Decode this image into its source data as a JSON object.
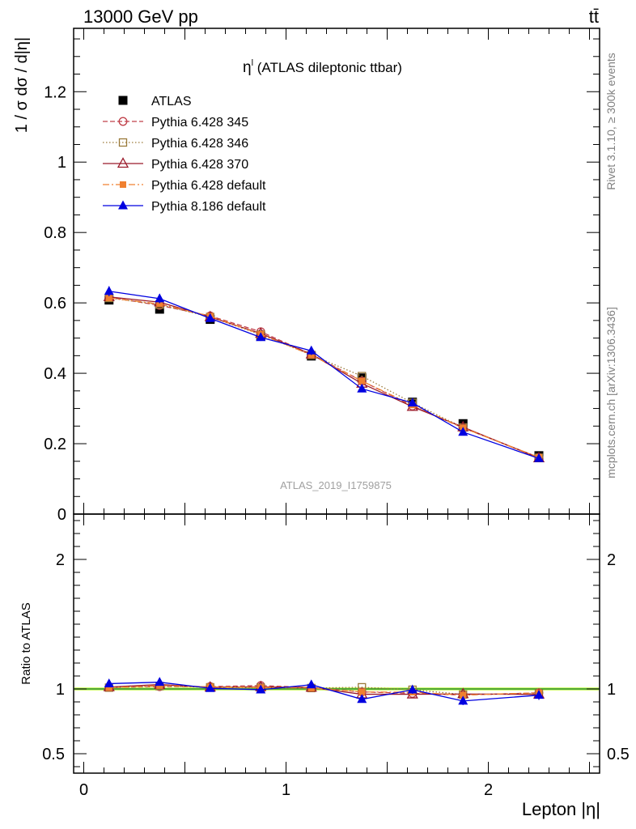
{
  "header": {
    "left_label": "13000 GeV pp",
    "right_label": "tt̄"
  },
  "side_labels": {
    "rivet": "Rivet 3.1.10, ≥ 300k events",
    "mcplots": "mcplots.cern.ch [arXiv:1306.3436]"
  },
  "chart_data": {
    "type": "line",
    "title_symbol": "η",
    "title_superscript": "l",
    "title_rest": " (ATLAS dileptonic ttbar)",
    "ylabel": "1 / σ  dσ / d|η|",
    "xlabel": "Lepton |η|",
    "analysis_label": "ATLAS_2019_I1759875",
    "xlim": [
      -0.05,
      2.55
    ],
    "ylim": [
      0,
      1.38
    ],
    "x_ticks": [
      "0",
      "1",
      "2"
    ],
    "y_ticks": [
      "0",
      "0.2",
      "0.4",
      "0.6",
      "0.8",
      "1",
      "1.2"
    ],
    "x": [
      0.125,
      0.375,
      0.625,
      0.875,
      1.125,
      1.375,
      1.625,
      1.875,
      2.25
    ],
    "series": [
      {
        "name": "ATLAS",
        "color": "#000000",
        "marker": "square-filled",
        "line": "none",
        "values": [
          0.608,
          0.582,
          0.553,
          0.505,
          0.449,
          0.387,
          0.318,
          0.257,
          0.166
        ]
      },
      {
        "name": "Pythia 6.428 345",
        "color": "#c0404a",
        "marker": "circle-open",
        "line": "dashed",
        "values": [
          0.616,
          0.593,
          0.563,
          0.518,
          0.454,
          0.378,
          0.307,
          0.245,
          0.161
        ]
      },
      {
        "name": "Pythia 6.428 346",
        "color": "#9a7a3a",
        "marker": "square-open",
        "line": "dotted",
        "values": [
          0.614,
          0.595,
          0.56,
          0.51,
          0.452,
          0.392,
          0.316,
          0.246,
          0.16
        ]
      },
      {
        "name": "Pythia 6.428 370",
        "color": "#9a1a2a",
        "marker": "triangle-open",
        "line": "solid",
        "values": [
          0.617,
          0.602,
          0.56,
          0.513,
          0.454,
          0.371,
          0.305,
          0.247,
          0.159
        ]
      },
      {
        "name": "Pythia 6.428 default",
        "color": "#f08030",
        "marker": "square-filled-small",
        "line": "dashdot",
        "values": [
          0.614,
          0.597,
          0.562,
          0.511,
          0.452,
          0.378,
          0.31,
          0.245,
          0.161
        ]
      },
      {
        "name": "Pythia 8.186 default",
        "color": "#0000e0",
        "marker": "triangle-filled",
        "line": "solid",
        "values": [
          0.633,
          0.612,
          0.556,
          0.502,
          0.464,
          0.356,
          0.316,
          0.233,
          0.158
        ]
      }
    ],
    "errors": {
      "ATLAS": [
        0.008,
        0.008,
        0.008,
        0.008,
        0.008,
        0.008,
        0.008,
        0.008,
        0.008
      ],
      "Pythia 8.186 default": [
        0.014,
        0.013,
        0.01,
        0.01,
        0.012,
        0.007,
        0.01,
        0.008,
        0.006
      ]
    },
    "ratio": {
      "ylabel": "Ratio to ATLAS",
      "ylim": [
        0.35,
        2.35
      ],
      "y_ticks": [
        "0.5",
        "1",
        "2"
      ],
      "band_color": "#ccff66",
      "reference_color": "#2a8a2a",
      "series": [
        {
          "name": "Pythia 6.428 345",
          "values": [
            1.012,
            1.018,
            1.018,
            1.026,
            1.011,
            0.977,
            0.966,
            0.953,
            0.97
          ]
        },
        {
          "name": "Pythia 6.428 346",
          "values": [
            1.01,
            1.022,
            1.013,
            1.01,
            1.007,
            1.013,
            0.994,
            0.957,
            0.964
          ]
        },
        {
          "name": "Pythia 6.428 370",
          "values": [
            1.015,
            1.034,
            1.013,
            1.016,
            1.011,
            0.959,
            0.959,
            0.961,
            0.958
          ]
        },
        {
          "name": "Pythia 6.428 default",
          "values": [
            1.01,
            1.026,
            1.016,
            1.012,
            1.007,
            0.977,
            0.975,
            0.953,
            0.97
          ]
        },
        {
          "name": "Pythia 8.186 default",
          "values": [
            1.041,
            1.052,
            1.005,
            0.994,
            1.033,
            0.92,
            0.994,
            0.907,
            0.952
          ]
        }
      ]
    }
  }
}
